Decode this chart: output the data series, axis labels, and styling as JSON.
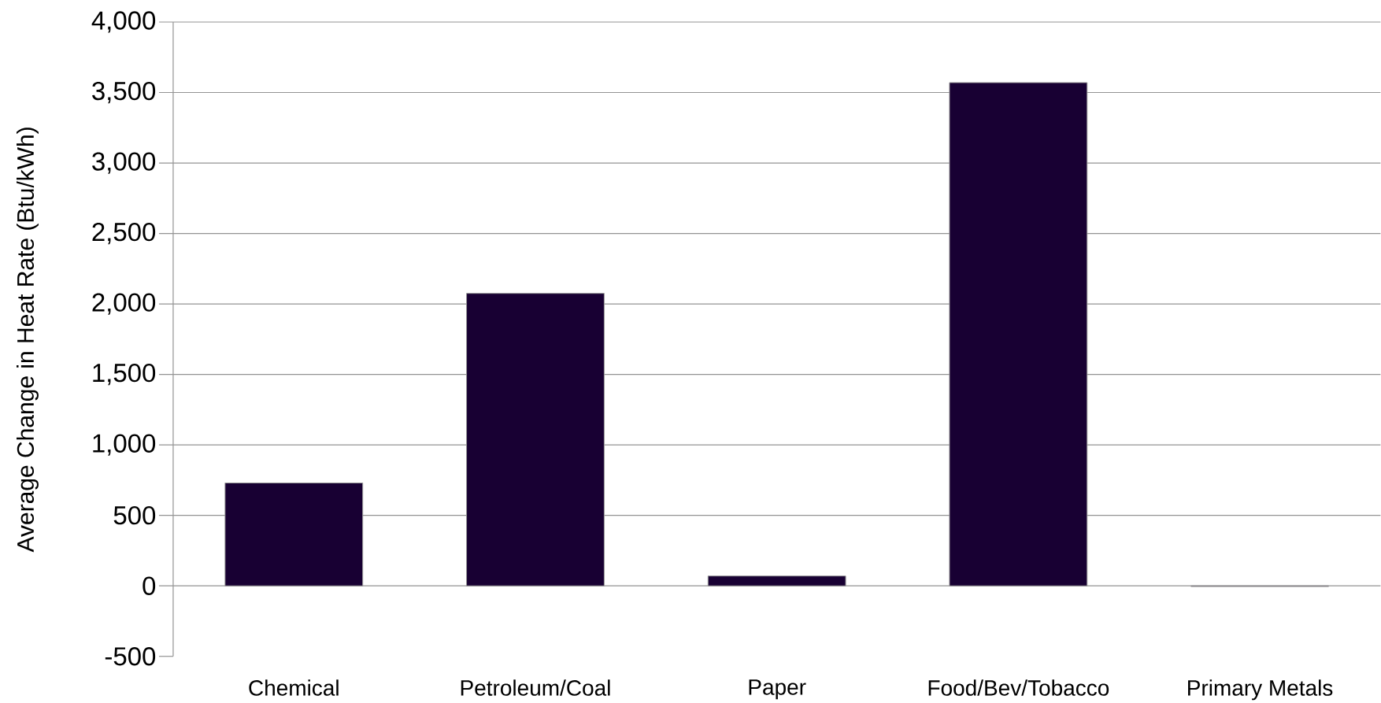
{
  "chart_data": {
    "type": "bar",
    "ylabel": "Average Change in Heat Rate (Btu/kWh)",
    "categories": [
      "Chemical",
      "Petroleum/Coal",
      "Paper",
      "Food/Bev/Tobacco",
      "Primary Metals"
    ],
    "values": [
      730,
      2075,
      70,
      3570,
      -5
    ],
    "color": "#180033",
    "ylim": [
      -500,
      4000
    ],
    "yticks": [
      -500,
      0,
      500,
      {
        "value": 1000,
        "label": "1,000"
      },
      {
        "value": 1500,
        "label": "1,500"
      },
      {
        "value": 2000,
        "label": "2,000"
      },
      {
        "value": 2500,
        "label": "2,500"
      },
      {
        "value": 3000,
        "label": "3,000"
      },
      {
        "value": 3500,
        "label": "3,500"
      },
      {
        "value": 4000,
        "label": "4,000"
      }
    ],
    "grid": "y"
  }
}
